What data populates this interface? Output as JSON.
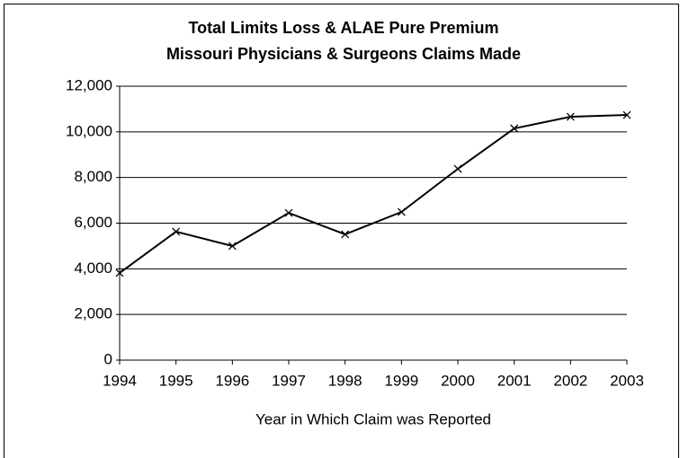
{
  "chart_data": {
    "type": "line",
    "title": [
      "Total Limits Loss & ALAE Pure Premium",
      "Missouri Physicians & Surgeons Claims Made"
    ],
    "x_label": "Year in Which Claim was Reported",
    "x": [
      1994,
      1995,
      1996,
      1997,
      1998,
      1999,
      2000,
      2001,
      2002,
      2003
    ],
    "values": [
      3820,
      5630,
      5000,
      6450,
      5510,
      6490,
      8380,
      10150,
      10660,
      10740
    ],
    "color": "#000000",
    "xlim": [
      1994,
      2003
    ],
    "xticks": [
      1994,
      1995,
      1996,
      1997,
      1998,
      1999,
      2000,
      2001,
      2002,
      2003
    ],
    "ylim": [
      0,
      12000
    ],
    "yticks": [
      0,
      {
        "value": 2000,
        "label": "2,000"
      },
      {
        "value": 4000,
        "label": "4,000"
      },
      {
        "value": 6000,
        "label": "6,000"
      },
      {
        "value": 8000,
        "label": "8,000"
      },
      {
        "value": 10000,
        "label": "10,000"
      },
      {
        "value": 12000,
        "label": "12,000"
      }
    ],
    "grid": true
  }
}
